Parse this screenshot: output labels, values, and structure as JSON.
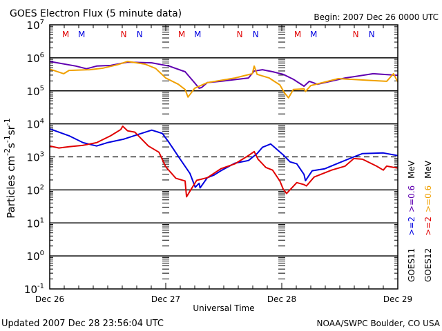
{
  "chart_data": {
    "type": "line",
    "title": "GOES Electron Flux (5 minute data)",
    "subtitle": "Begin: 2007 Dec 26 0000 UTC",
    "xlabel": "Universal Time",
    "ylabel": "Particles cm-2 s-1 sr-1",
    "y_scale": "log",
    "ylim_exp": [
      -1,
      7
    ],
    "y_ticks": [
      {
        "base": "10",
        "exp": "7"
      },
      {
        "base": "10",
        "exp": "6"
      },
      {
        "base": "10",
        "exp": "5"
      },
      {
        "base": "10",
        "exp": "4"
      },
      {
        "base": "10",
        "exp": "3"
      },
      {
        "base": "10",
        "exp": "2"
      },
      {
        "base": "10",
        "exp": "1"
      },
      {
        "base": "10",
        "exp": "0"
      },
      {
        "base": "10",
        "exp": "-1"
      }
    ],
    "x_unit": "hours since 2007 Dec 26 0000 UTC",
    "xlim": [
      0,
      72
    ],
    "x_ticks": [
      {
        "hour": 0,
        "label": "Dec 26"
      },
      {
        "hour": 24,
        "label": "Dec 27"
      },
      {
        "hour": 48,
        "label": "Dec 28"
      },
      {
        "hour": 72,
        "label": "Dec 29"
      }
    ],
    "threshold": {
      "value": 1000,
      "style": "dashed"
    },
    "grid": "horizontal lines at 1e6, 1e5, 1e4, 1e2, 1e1, 1e0",
    "local_time_markers": [
      {
        "label": "M",
        "color": "#e00000",
        "hours": [
          3.3,
          27.3,
          51.3
        ]
      },
      {
        "label": "M",
        "color": "#0000e0",
        "hours": [
          6.6,
          30.6,
          54.6
        ]
      },
      {
        "label": "N",
        "color": "#e00000",
        "hours": [
          15.3,
          39.3,
          63.3
        ]
      },
      {
        "label": "N",
        "color": "#0000e0",
        "hours": [
          18.6,
          42.6,
          66.6
        ]
      }
    ],
    "legend": {
      "placement": "right-vertical",
      "columns": [
        {
          "sat": "GOES11",
          "items": [
            {
              "label": ">=2",
              "color": "#0000e0"
            },
            {
              "label": ">=0.6",
              "color": "#6000b0"
            }
          ],
          "unit": "MeV"
        },
        {
          "sat": "GOES12",
          "items": [
            {
              "label": ">=2",
              "color": "#e00000"
            },
            {
              "label": ">=0.6",
              "color": "#f0a000"
            }
          ],
          "unit": "MeV"
        }
      ]
    },
    "series": [
      {
        "name": "GOES11 >=0.6 MeV",
        "color": "#6000b0",
        "points": [
          [
            0,
            5.89
          ],
          [
            5.4,
            5.75
          ],
          [
            7.6,
            5.67
          ],
          [
            9.7,
            5.75
          ],
          [
            12.6,
            5.77
          ],
          [
            16.1,
            5.87
          ],
          [
            21.1,
            5.85
          ],
          [
            24.7,
            5.75
          ],
          [
            28,
            5.58
          ],
          [
            29.7,
            5.29
          ],
          [
            30.9,
            5.08
          ],
          [
            31.4,
            5.1
          ],
          [
            32.6,
            5.25
          ],
          [
            35.4,
            5.29
          ],
          [
            41.1,
            5.39
          ],
          [
            42.3,
            5.6
          ],
          [
            44,
            5.64
          ],
          [
            46.1,
            5.58
          ],
          [
            48.3,
            5.5
          ],
          [
            50.4,
            5.35
          ],
          [
            52.6,
            5.14
          ],
          [
            53.7,
            5.29
          ],
          [
            55.4,
            5.2
          ],
          [
            61.1,
            5.39
          ],
          [
            66.9,
            5.52
          ],
          [
            72,
            5.47
          ]
        ]
      },
      {
        "name": "GOES12 >=0.6 MeV",
        "color": "#f0a000",
        "points": [
          [
            0,
            5.66
          ],
          [
            2.9,
            5.52
          ],
          [
            4,
            5.62
          ],
          [
            8.3,
            5.64
          ],
          [
            11.1,
            5.69
          ],
          [
            14,
            5.79
          ],
          [
            16.1,
            5.89
          ],
          [
            19.7,
            5.81
          ],
          [
            21.9,
            5.68
          ],
          [
            24,
            5.39
          ],
          [
            26.6,
            5.2
          ],
          [
            28,
            5.04
          ],
          [
            28.6,
            4.81
          ],
          [
            30,
            5.08
          ],
          [
            32.6,
            5.25
          ],
          [
            38.3,
            5.39
          ],
          [
            41.9,
            5.52
          ],
          [
            42.3,
            5.75
          ],
          [
            42.9,
            5.5
          ],
          [
            45.4,
            5.39
          ],
          [
            47.6,
            5.18
          ],
          [
            48.6,
            4.93
          ],
          [
            49.4,
            4.79
          ],
          [
            50.4,
            5.04
          ],
          [
            52.6,
            5.06
          ],
          [
            52.9,
            4.98
          ],
          [
            54,
            5.16
          ],
          [
            59.7,
            5.37
          ],
          [
            66.9,
            5.31
          ],
          [
            69.7,
            5.29
          ],
          [
            71.1,
            5.52
          ],
          [
            72,
            5.27
          ]
        ]
      },
      {
        "name": "GOES11 >=2 MeV",
        "color": "#0000e0",
        "points": [
          [
            0,
            3.85
          ],
          [
            4,
            3.64
          ],
          [
            6.9,
            3.43
          ],
          [
            9.7,
            3.33
          ],
          [
            11.9,
            3.43
          ],
          [
            15.4,
            3.54
          ],
          [
            18.3,
            3.68
          ],
          [
            21.1,
            3.81
          ],
          [
            23.3,
            3.71
          ],
          [
            24.7,
            3.43
          ],
          [
            26.9,
            2.95
          ],
          [
            29,
            2.5
          ],
          [
            30.1,
            2.08
          ],
          [
            30.9,
            2.2
          ],
          [
            31.1,
            2.06
          ],
          [
            32.6,
            2.37
          ],
          [
            34,
            2.45
          ],
          [
            35.4,
            2.58
          ],
          [
            38.3,
            2.81
          ],
          [
            41.1,
            2.89
          ],
          [
            42.9,
            3.1
          ],
          [
            44,
            3.29
          ],
          [
            45.7,
            3.39
          ],
          [
            48.3,
            3.06
          ],
          [
            49.7,
            2.85
          ],
          [
            51.1,
            2.79
          ],
          [
            52.6,
            2.47
          ],
          [
            52.9,
            2.28
          ],
          [
            54.3,
            2.58
          ],
          [
            56.9,
            2.64
          ],
          [
            59.7,
            2.81
          ],
          [
            62.9,
            3.0
          ],
          [
            64.7,
            3.1
          ],
          [
            69,
            3.12
          ],
          [
            72,
            3.04
          ]
        ]
      },
      {
        "name": "GOES12 >=2 MeV",
        "color": "#e00000",
        "points": [
          [
            0,
            3.33
          ],
          [
            1.9,
            3.27
          ],
          [
            4,
            3.31
          ],
          [
            6.9,
            3.35
          ],
          [
            9.7,
            3.43
          ],
          [
            12.6,
            3.64
          ],
          [
            14.7,
            3.83
          ],
          [
            15.1,
            3.93
          ],
          [
            16.1,
            3.79
          ],
          [
            17.6,
            3.75
          ],
          [
            20.4,
            3.33
          ],
          [
            22.6,
            3.14
          ],
          [
            24,
            2.7
          ],
          [
            26.1,
            2.35
          ],
          [
            28,
            2.27
          ],
          [
            28.3,
            1.79
          ],
          [
            29,
            1.96
          ],
          [
            30.4,
            2.29
          ],
          [
            32.6,
            2.37
          ],
          [
            35.4,
            2.64
          ],
          [
            38.3,
            2.79
          ],
          [
            41.1,
            3.04
          ],
          [
            42.3,
            3.16
          ],
          [
            43.1,
            2.93
          ],
          [
            44.7,
            2.68
          ],
          [
            46.1,
            2.6
          ],
          [
            47.6,
            2.27
          ],
          [
            48.3,
            2.02
          ],
          [
            49,
            1.89
          ],
          [
            51.1,
            2.22
          ],
          [
            52.6,
            2.16
          ],
          [
            53.1,
            2.12
          ],
          [
            54.7,
            2.39
          ],
          [
            58.3,
            2.6
          ],
          [
            61.1,
            2.72
          ],
          [
            62.9,
            2.95
          ],
          [
            64.7,
            2.93
          ],
          [
            67.6,
            2.72
          ],
          [
            69,
            2.6
          ],
          [
            69.7,
            2.72
          ],
          [
            72,
            2.66
          ]
        ]
      }
    ]
  },
  "footer": {
    "updated": "Updated 2007 Dec 28 23:56:04 UTC",
    "credit": "NOAA/SWPC Boulder, CO USA"
  }
}
